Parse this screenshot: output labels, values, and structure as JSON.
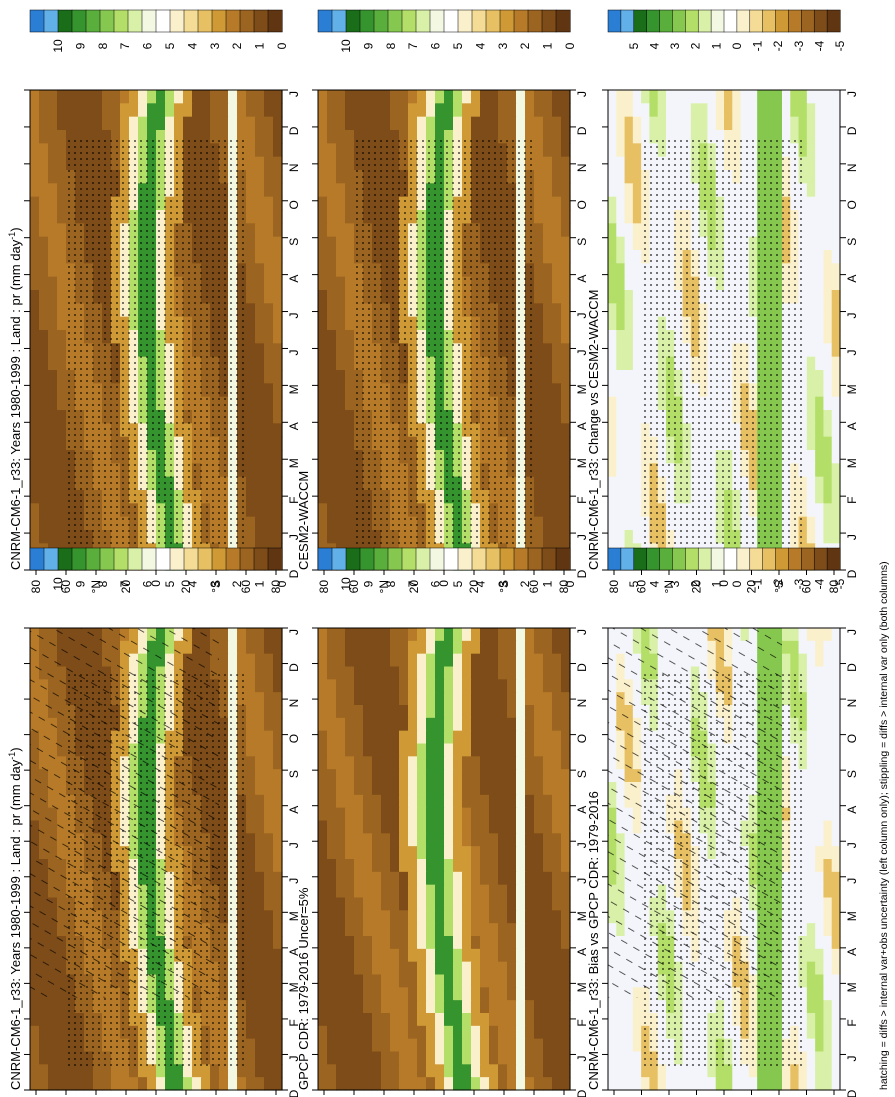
{
  "footnote": "hatching = diffs > internal var+obs uncertainty (left column only); stippling = diffs > internal var only (both columns)",
  "colorbars": {
    "abs": {
      "labels": [
        "10",
        "9",
        "8",
        "7",
        "6",
        "5",
        "4",
        "3",
        "2",
        "1",
        "0"
      ],
      "colors": [
        "#2a7fd5",
        "#62b0e8",
        "#1a6e1a",
        "#35942e",
        "#5aae3c",
        "#86c84f",
        "#b3df68",
        "#d9f0a8",
        "#f3f8e3",
        "#ffffff",
        "#fbf0cc",
        "#f4dc96",
        "#e7c064",
        "#cf9a36",
        "#b67a28",
        "#9b6420",
        "#7e4c18",
        "#603512"
      ]
    },
    "diff": {
      "labels": [
        "5",
        "4",
        "3",
        "2",
        "1",
        "0",
        "-1",
        "-2",
        "-3",
        "-4",
        "-5"
      ],
      "colors": [
        "#2a7fd5",
        "#62b0e8",
        "#1a6e1a",
        "#35942e",
        "#5aae3c",
        "#86c84f",
        "#b3df68",
        "#d9f0a8",
        "#f3f8e3",
        "#ffffff",
        "#fbf0cc",
        "#f4dc96",
        "#e7c064",
        "#cf9a36",
        "#b67a28",
        "#9b6420",
        "#7e4c18",
        "#603512"
      ]
    }
  },
  "axis": {
    "months": [
      "D",
      "J",
      "F",
      "M",
      "A",
      "M",
      "J",
      "J",
      "A",
      "S",
      "O",
      "N",
      "D",
      "J"
    ],
    "lat_labels": [
      "80",
      "60",
      "°N",
      "20",
      "0",
      "20",
      "°S",
      "60",
      "80"
    ]
  },
  "panels": [
    {
      "title": "CNRM-CM6-1_r33: Years 1980-1999 : Land : pr (mm day",
      "title_sup": "-1",
      "title_end": ")",
      "kind": "abs",
      "hatch": true,
      "stipple": true
    },
    {
      "title": "CNRM-CM6-1_r33: Years 1980-1999 : Land : pr (mm day",
      "title_sup": "-1",
      "title_end": ")",
      "kind": "abs",
      "hatch": false,
      "stipple": true
    },
    {
      "title": "GPCP CDR: 1979-2016 Uncer=5%",
      "title_sup": "",
      "title_end": "",
      "kind": "abs",
      "hatch": false,
      "stipple": false
    },
    {
      "title": "CESM2-WACCM",
      "title_sup": "",
      "title_end": "",
      "kind": "abs",
      "hatch": false,
      "stipple": true
    },
    {
      "title": "CNRM-CM6-1_r33: Bias vs GPCP CDR: 1979-2016",
      "title_sup": "",
      "title_end": "",
      "kind": "diff",
      "hatch": true,
      "stipple": true
    },
    {
      "title": "CNRM-CM6-1_r33: Change vs CESM2-WACCM",
      "title_sup": "",
      "title_end": "",
      "kind": "diff",
      "hatch": false,
      "stipple": true
    }
  ],
  "chart_data": [
    {
      "type": "heatmap",
      "title": "CNRM-CM6-1_r33: Years 1980-1999 : Land : pr (mm day-1)",
      "xlabel": "",
      "ylabel": "",
      "x_categories": [
        "D",
        "J",
        "F",
        "M",
        "A",
        "M",
        "J",
        "J",
        "A",
        "S",
        "O",
        "N",
        "D",
        "J"
      ],
      "y_ticks": [
        "80",
        "60",
        "°N",
        "20",
        "0",
        "20",
        "°S",
        "60",
        "80"
      ],
      "colorbar": {
        "min": 0,
        "max": 10,
        "ticks": [
          0,
          1,
          2,
          3,
          4,
          5,
          6,
          7,
          8,
          9,
          10
        ]
      },
      "wet_band_peak_lat": {
        "Jan": -12,
        "Apr": -2,
        "Jul": 10,
        "Oct": 2
      }
    },
    {
      "type": "heatmap",
      "title": "GPCP CDR: 1979-2016 Uncer=5%",
      "x_categories": [
        "D",
        "J",
        "F",
        "M",
        "A",
        "M",
        "J",
        "J",
        "A",
        "S",
        "O",
        "N",
        "D",
        "J"
      ],
      "y_ticks": [
        "80",
        "60",
        "°N",
        "20",
        "0",
        "20",
        "°S",
        "60",
        "80"
      ],
      "colorbar": {
        "min": 0,
        "max": 10,
        "ticks": [
          0,
          1,
          2,
          3,
          4,
          5,
          6,
          7,
          8,
          9,
          10
        ]
      },
      "wet_band_peak_lat": {
        "Jan": -10,
        "Apr": -1,
        "Jul": 9,
        "Oct": 3
      }
    },
    {
      "type": "heatmap",
      "title": "CNRM-CM6-1_r33: Bias vs GPCP CDR: 1979-2016",
      "x_categories": [
        "D",
        "J",
        "F",
        "M",
        "A",
        "M",
        "J",
        "J",
        "A",
        "S",
        "O",
        "N",
        "D",
        "J"
      ],
      "y_ticks": [
        "80",
        "60",
        "°N",
        "20",
        "0",
        "20",
        "°S",
        "60",
        "80"
      ],
      "colorbar": {
        "min": -5,
        "max": 5,
        "ticks": [
          -5,
          -4,
          -3,
          -2,
          -1,
          0,
          1,
          2,
          3,
          4,
          5
        ]
      }
    },
    {
      "type": "heatmap",
      "title": "CNRM-CM6-1_r33: Years 1980-1999 : Land : pr (mm day-1)",
      "x_categories": [
        "D",
        "J",
        "F",
        "M",
        "A",
        "M",
        "J",
        "J",
        "A",
        "S",
        "O",
        "N",
        "D",
        "J"
      ],
      "y_ticks": [
        "80",
        "60",
        "°N",
        "20",
        "0",
        "20",
        "°S",
        "60",
        "80"
      ],
      "colorbar": {
        "min": 0,
        "max": 10,
        "ticks": [
          0,
          1,
          2,
          3,
          4,
          5,
          6,
          7,
          8,
          9,
          10
        ]
      }
    },
    {
      "type": "heatmap",
      "title": "CESM2-WACCM",
      "x_categories": [
        "D",
        "J",
        "F",
        "M",
        "A",
        "M",
        "J",
        "J",
        "A",
        "S",
        "O",
        "N",
        "D",
        "J"
      ],
      "y_ticks": [
        "80",
        "60",
        "°N",
        "20",
        "0",
        "20",
        "°S",
        "60",
        "80"
      ],
      "colorbar": {
        "min": 0,
        "max": 10,
        "ticks": [
          0,
          1,
          2,
          3,
          4,
          5,
          6,
          7,
          8,
          9,
          10
        ]
      },
      "wet_band_peak_lat": {
        "Jan": -12,
        "Apr": -4,
        "Jul": 11,
        "Oct": 4
      }
    },
    {
      "type": "heatmap",
      "title": "CNRM-CM6-1_r33: Change vs CESM2-WACCM",
      "x_categories": [
        "D",
        "J",
        "F",
        "M",
        "A",
        "M",
        "J",
        "J",
        "A",
        "S",
        "O",
        "N",
        "D",
        "J"
      ],
      "y_ticks": [
        "80",
        "60",
        "°N",
        "20",
        "0",
        "20",
        "°S",
        "60",
        "80"
      ],
      "colorbar": {
        "min": -5,
        "max": 5,
        "ticks": [
          -5,
          -4,
          -3,
          -2,
          -1,
          0,
          1,
          2,
          3,
          4,
          5
        ]
      }
    }
  ]
}
